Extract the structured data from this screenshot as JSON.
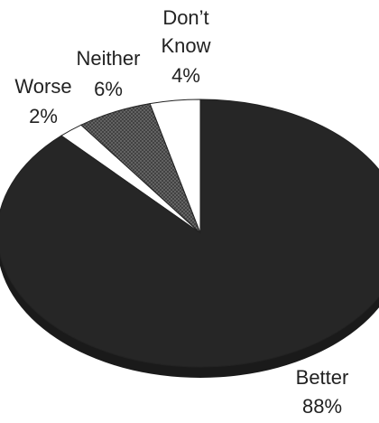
{
  "chart_data": {
    "type": "pie",
    "slices": [
      {
        "label": "Better",
        "pct_label": "88%",
        "value": 88,
        "color": "#262626",
        "pattern": "solid"
      },
      {
        "label": "Worse",
        "pct_label": "2%",
        "value": 2,
        "color": "#ffffff",
        "pattern": "solid"
      },
      {
        "label": "Neither",
        "pct_label": "6%",
        "value": 6,
        "color": "#6b6b6b",
        "pattern": "crosshatch"
      },
      {
        "label": "Don't Know",
        "pct_label": "4%",
        "value": 4,
        "color": "#ffffff",
        "pattern": "solid"
      }
    ],
    "start": "12 o'clock",
    "direction": "counterclockwise",
    "style": "3d-tilted"
  }
}
